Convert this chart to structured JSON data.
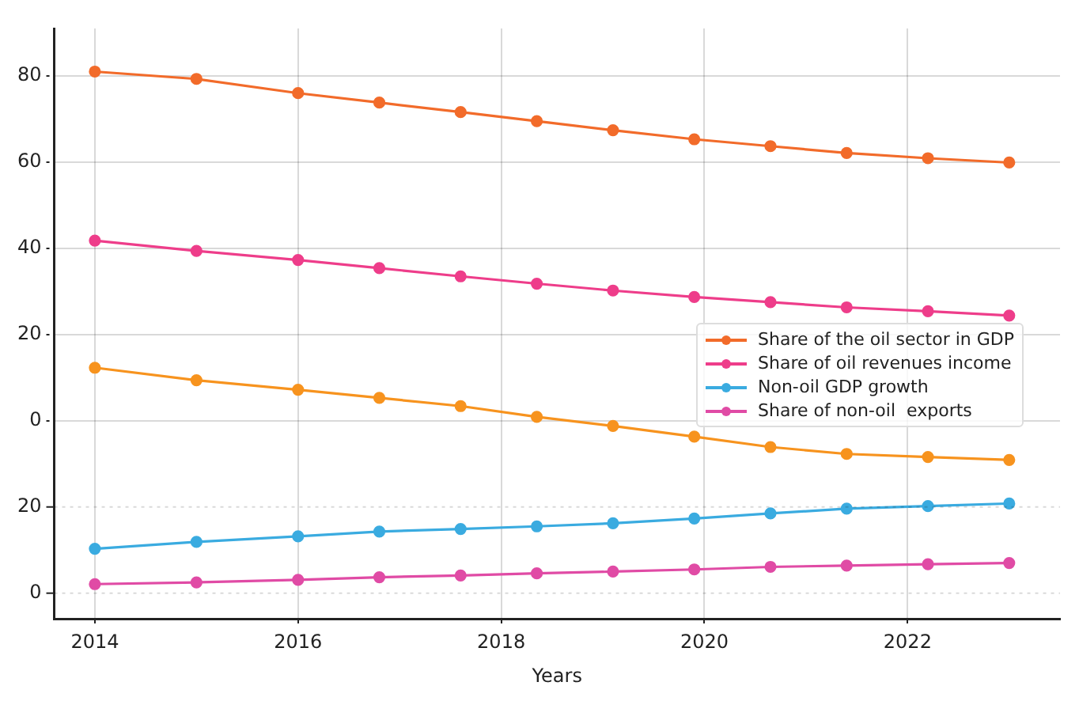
{
  "chart_data": {
    "type": "line",
    "xlabel": "Years",
    "x": [
      2014,
      2015,
      2016,
      2016.8,
      2017.6,
      2018.35,
      2019.1,
      2019.9,
      2020.65,
      2021.4,
      2022.2,
      2023
    ],
    "series": [
      {
        "name": "Share of the oil sector in GDP",
        "color": "#f26b2a",
        "values": [
          81,
          79.3,
          76,
          73.8,
          71.6,
          69.5,
          67.4,
          65.3,
          63.7,
          62.1,
          60.9,
          59.9
        ]
      },
      {
        "name": "Share of oil revenues income",
        "color": "#ee3d8a",
        "values": [
          41.8,
          39.4,
          37.3,
          35.4,
          33.5,
          31.8,
          30.2,
          28.7,
          27.5,
          26.3,
          25.4,
          24.4
        ]
      },
      {
        "name": "Non-oil GDP growth",
        "color": "#3aabe0",
        "axis": "y2",
        "values": [
          10.3,
          11.9,
          13.2,
          14.3,
          14.9,
          15.5,
          16.2,
          17.3,
          18.5,
          19.6,
          20.2,
          20.8
        ]
      },
      {
        "name": "Share of non-oil  exports",
        "color": "#e04ba5",
        "axis": "y2",
        "values": [
          2.1,
          2.5,
          3.1,
          3.7,
          4.1,
          4.6,
          5,
          5.5,
          6.1,
          6.4,
          6.7,
          7
        ]
      },
      {
        "color": "#f7931e",
        "values": [
          12.3,
          9.4,
          7.2,
          5.3,
          3.4,
          0.9,
          -1.2,
          -3.7,
          -6.1,
          -7.7,
          -8.4,
          -9.1
        ]
      }
    ],
    "xlim": [
      2013.6,
      2023.5
    ],
    "xticks": [
      2014,
      2016,
      2018,
      2020,
      2022
    ],
    "ylim": [
      -46,
      91
    ],
    "yticks": [
      80,
      60,
      40,
      20,
      0
    ],
    "y2lim": [
      -6,
      131
    ],
    "y2ticks": [
      20,
      0
    ],
    "grid": true,
    "legend": "center",
    "marker": "circle",
    "line_style": "solid"
  }
}
